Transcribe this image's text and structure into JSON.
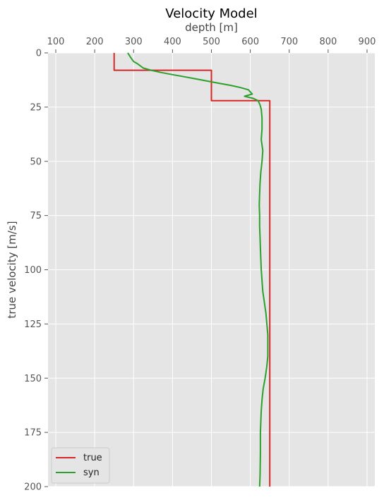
{
  "chart_data": {
    "type": "line",
    "title": "Velocity Model",
    "xlabel": "depth [m]",
    "ylabel": "true velocity [m/s]",
    "xlim": [
      80,
      920
    ],
    "ylim": [
      200,
      0
    ],
    "x_axis_position": "top",
    "y_inverted": true,
    "grid": true,
    "x_ticks": [
      100,
      200,
      300,
      400,
      500,
      600,
      700,
      800,
      900
    ],
    "y_ticks": [
      0,
      25,
      50,
      75,
      100,
      125,
      150,
      175,
      200
    ],
    "legend_position": "lower-left",
    "colors": {
      "true": "#d62728",
      "syn": "#2ca02c",
      "background": "#e5e5e5",
      "grid": "#ffffff"
    },
    "series": [
      {
        "name": "true",
        "x": [
          250,
          250,
          500,
          500,
          650,
          650
        ],
        "y": [
          0,
          8,
          8,
          22,
          22,
          200
        ]
      },
      {
        "name": "syn",
        "x": [
          285,
          292,
          300,
          310,
          325,
          345,
          370,
          400,
          430,
          460,
          490,
          520,
          550,
          575,
          595,
          605,
          585,
          608,
          620,
          625,
          628,
          630,
          630,
          628,
          632,
          630,
          627,
          625,
          624,
          623,
          624,
          624,
          625,
          626,
          628,
          632,
          640,
          645,
          645,
          642,
          638,
          633,
          630,
          628,
          627,
          626,
          626,
          626,
          625,
          624
        ],
        "y": [
          0,
          2,
          4,
          5,
          7,
          8,
          9,
          10,
          11,
          12,
          13,
          14,
          15,
          16,
          17,
          19,
          20,
          21,
          22,
          24,
          26,
          30,
          35,
          40,
          45,
          50,
          55,
          60,
          65,
          70,
          75,
          80,
          85,
          90,
          100,
          110,
          120,
          130,
          140,
          145,
          150,
          155,
          160,
          165,
          170,
          175,
          180,
          185,
          195,
          200
        ]
      }
    ]
  }
}
